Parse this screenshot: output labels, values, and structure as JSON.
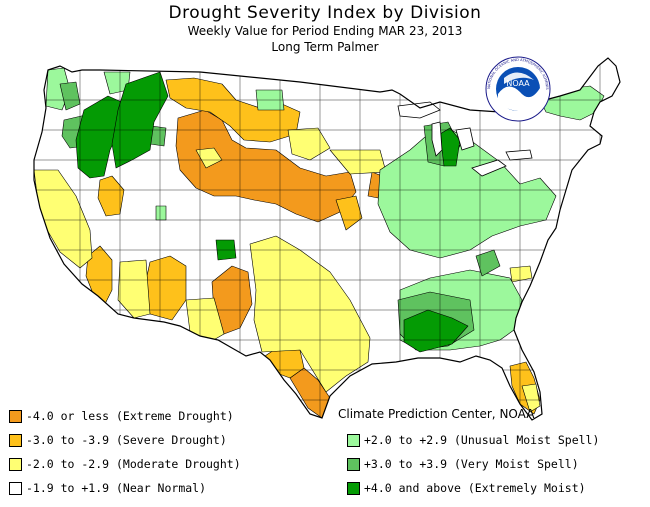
{
  "header": {
    "title": "Drought Severity Index by Division",
    "subtitle": "Weekly Value for Period Ending MAR 23, 2013",
    "index_name": "Long Term Palmer"
  },
  "credit": "Climate Prediction Center, NOAA",
  "logo": {
    "text": "NOAA",
    "ring_text": "NATIONAL OCEANIC AND ATMOSPHERIC ADMINISTRATION · U.S. DEPARTMENT OF COMMERCE"
  },
  "colors": {
    "extreme_drought": "#f39a1d",
    "severe_drought": "#fec11b",
    "moderate_drought": "#ffff73",
    "near_normal": "#ffffff",
    "unusual_moist": "#9cf89c",
    "very_moist": "#5fc25f",
    "extremely_moist": "#049b04",
    "border": "#000000"
  },
  "legend": [
    {
      "label": "-4.0 or less (Extreme Drought)",
      "color": "#f39a1d"
    },
    {
      "label": "-3.0 to -3.9 (Severe Drought)",
      "color": "#fec11b"
    },
    {
      "label": "-2.0 to -2.9 (Moderate Drought)",
      "color": "#ffff73"
    },
    {
      "label": "-1.9 to +1.9 (Near Normal)",
      "color": "#ffffff"
    },
    {
      "label": "+2.0 to +2.9 (Unusual Moist Spell)",
      "color": "#9cf89c"
    },
    {
      "label": "+3.0 to +3.9 (Very Moist Spell)",
      "color": "#5fc25f"
    },
    {
      "label": "+4.0 and above (Extremely Moist)",
      "color": "#049b04"
    }
  ]
}
